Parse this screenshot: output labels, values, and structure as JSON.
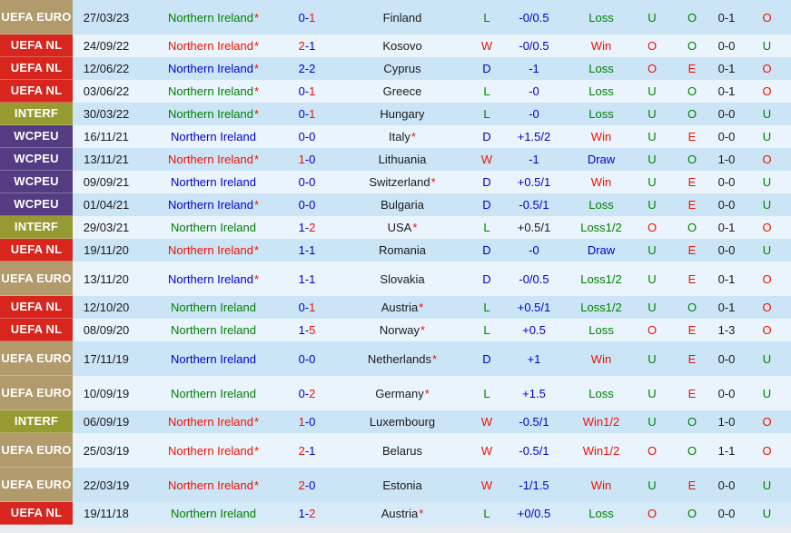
{
  "colors": {
    "green": "#008000",
    "red": "#ee1100",
    "blue": "#0000cc",
    "black": "#1a1a1a",
    "dark_stripe": "#cbe5f7",
    "light_stripe": "#e9f4fc",
    "mid_stripe": "#d6eaf8",
    "badge_text": "#ffffff",
    "bottom_strip": "#e4ebf1"
  },
  "competitions": {
    "UEFA EURO": "#b19b6d",
    "UEFA NL": "#d8251d",
    "INTERF": "#969b31",
    "WCPEU": "#533c82"
  },
  "rows": [
    {
      "competition": "UEFA EURO",
      "date": "27/03/23",
      "home": "Northern Ireland",
      "home_color": "green",
      "home_star": true,
      "ft_home": "0",
      "ft_home_color": "blue",
      "ft_away": "1",
      "ft_away_color": "red",
      "away": "Finland",
      "away_star": false,
      "wdl": "L",
      "wdl_color": "green",
      "handicap": "-0/0.5",
      "handicap_color": "blue",
      "result": "Loss",
      "result_color": "green",
      "ou1": "U",
      "ou1_color": "green",
      "oe": "O",
      "oe_color": "green",
      "ht": "0-1",
      "ou2": "O",
      "ou2_color": "red",
      "tall": true,
      "shade": "dark"
    },
    {
      "competition": "UEFA NL",
      "date": "24/09/22",
      "home": "Northern Ireland",
      "home_color": "red",
      "home_star": true,
      "ft_home": "2",
      "ft_home_color": "red",
      "ft_away": "1",
      "ft_away_color": "blue",
      "away": "Kosovo",
      "away_star": false,
      "wdl": "W",
      "wdl_color": "red",
      "handicap": "-0/0.5",
      "handicap_color": "blue",
      "result": "Win",
      "result_color": "red",
      "ou1": "O",
      "ou1_color": "red",
      "oe": "O",
      "oe_color": "green",
      "ht": "0-0",
      "ou2": "U",
      "ou2_color": "green",
      "tall": false,
      "shade": "light"
    },
    {
      "competition": "UEFA NL",
      "date": "12/06/22",
      "home": "Northern Ireland",
      "home_color": "blue",
      "home_star": true,
      "ft_home": "2",
      "ft_home_color": "blue",
      "ft_away": "2",
      "ft_away_color": "blue",
      "away": "Cyprus",
      "away_star": false,
      "wdl": "D",
      "wdl_color": "blue",
      "handicap": "-1",
      "handicap_color": "blue",
      "result": "Loss",
      "result_color": "green",
      "ou1": "O",
      "ou1_color": "red",
      "oe": "E",
      "oe_color": "red",
      "ht": "0-1",
      "ou2": "O",
      "ou2_color": "red",
      "tall": false,
      "shade": "dark"
    },
    {
      "competition": "UEFA NL",
      "date": "03/06/22",
      "home": "Northern Ireland",
      "home_color": "green",
      "home_star": true,
      "ft_home": "0",
      "ft_home_color": "blue",
      "ft_away": "1",
      "ft_away_color": "red",
      "away": "Greece",
      "away_star": false,
      "wdl": "L",
      "wdl_color": "green",
      "handicap": "-0",
      "handicap_color": "blue",
      "result": "Loss",
      "result_color": "green",
      "ou1": "U",
      "ou1_color": "green",
      "oe": "O",
      "oe_color": "green",
      "ht": "0-1",
      "ou2": "O",
      "ou2_color": "red",
      "tall": false,
      "shade": "light"
    },
    {
      "competition": "INTERF",
      "date": "30/03/22",
      "home": "Northern Ireland",
      "home_color": "green",
      "home_star": true,
      "ft_home": "0",
      "ft_home_color": "blue",
      "ft_away": "1",
      "ft_away_color": "red",
      "away": "Hungary",
      "away_star": false,
      "wdl": "L",
      "wdl_color": "green",
      "handicap": "-0",
      "handicap_color": "blue",
      "result": "Loss",
      "result_color": "green",
      "ou1": "U",
      "ou1_color": "green",
      "oe": "O",
      "oe_color": "green",
      "ht": "0-0",
      "ou2": "U",
      "ou2_color": "green",
      "tall": false,
      "shade": "dark"
    },
    {
      "competition": "WCPEU",
      "date": "16/11/21",
      "home": "Northern Ireland",
      "home_color": "blue",
      "home_star": false,
      "ft_home": "0",
      "ft_home_color": "blue",
      "ft_away": "0",
      "ft_away_color": "blue",
      "away": "Italy",
      "away_star": true,
      "wdl": "D",
      "wdl_color": "blue",
      "handicap": "+1.5/2",
      "handicap_color": "blue",
      "result": "Win",
      "result_color": "red",
      "ou1": "U",
      "ou1_color": "green",
      "oe": "E",
      "oe_color": "red",
      "ht": "0-0",
      "ou2": "U",
      "ou2_color": "green",
      "tall": false,
      "shade": "light"
    },
    {
      "competition": "WCPEU",
      "date": "13/11/21",
      "home": "Northern Ireland",
      "home_color": "red",
      "home_star": true,
      "ft_home": "1",
      "ft_home_color": "red",
      "ft_away": "0",
      "ft_away_color": "blue",
      "away": "Lithuania",
      "away_star": false,
      "wdl": "W",
      "wdl_color": "red",
      "handicap": "-1",
      "handicap_color": "blue",
      "result": "Draw",
      "result_color": "blue",
      "ou1": "U",
      "ou1_color": "green",
      "oe": "O",
      "oe_color": "green",
      "ht": "1-0",
      "ou2": "O",
      "ou2_color": "red",
      "tall": false,
      "shade": "dark"
    },
    {
      "competition": "WCPEU",
      "date": "09/09/21",
      "home": "Northern Ireland",
      "home_color": "blue",
      "home_star": false,
      "ft_home": "0",
      "ft_home_color": "blue",
      "ft_away": "0",
      "ft_away_color": "blue",
      "away": "Switzerland",
      "away_star": true,
      "wdl": "D",
      "wdl_color": "blue",
      "handicap": "+0.5/1",
      "handicap_color": "blue",
      "result": "Win",
      "result_color": "red",
      "ou1": "U",
      "ou1_color": "green",
      "oe": "E",
      "oe_color": "red",
      "ht": "0-0",
      "ou2": "U",
      "ou2_color": "green",
      "tall": false,
      "shade": "light"
    },
    {
      "competition": "WCPEU",
      "date": "01/04/21",
      "home": "Northern Ireland",
      "home_color": "blue",
      "home_star": true,
      "ft_home": "0",
      "ft_home_color": "blue",
      "ft_away": "0",
      "ft_away_color": "blue",
      "away": "Bulgaria",
      "away_star": false,
      "wdl": "D",
      "wdl_color": "blue",
      "handicap": "-0.5/1",
      "handicap_color": "blue",
      "result": "Loss",
      "result_color": "green",
      "ou1": "U",
      "ou1_color": "green",
      "oe": "E",
      "oe_color": "red",
      "ht": "0-0",
      "ou2": "U",
      "ou2_color": "green",
      "tall": false,
      "shade": "dark"
    },
    {
      "competition": "INTERF",
      "date": "29/03/21",
      "home": "Northern Ireland",
      "home_color": "green",
      "home_star": false,
      "ft_home": "1",
      "ft_home_color": "blue",
      "ft_away": "2",
      "ft_away_color": "red",
      "away": "USA",
      "away_star": true,
      "wdl": "L",
      "wdl_color": "green",
      "handicap": "+0.5/1",
      "handicap_color": "black",
      "result": "Loss1/2",
      "result_color": "green",
      "ou1": "O",
      "ou1_color": "red",
      "oe": "O",
      "oe_color": "green",
      "ht": "0-1",
      "ou2": "O",
      "ou2_color": "red",
      "tall": false,
      "shade": "light"
    },
    {
      "competition": "UEFA NL",
      "date": "19/11/20",
      "home": "Northern Ireland",
      "home_color": "red",
      "home_star": true,
      "ft_home": "1",
      "ft_home_color": "blue",
      "ft_away": "1",
      "ft_away_color": "blue",
      "away": "Romania",
      "away_star": false,
      "wdl": "D",
      "wdl_color": "blue",
      "handicap": "-0",
      "handicap_color": "blue",
      "result": "Draw",
      "result_color": "blue",
      "ou1": "U",
      "ou1_color": "green",
      "oe": "E",
      "oe_color": "red",
      "ht": "0-0",
      "ou2": "U",
      "ou2_color": "green",
      "tall": false,
      "shade": "dark"
    },
    {
      "competition": "UEFA EURO",
      "date": "13/11/20",
      "home": "Northern Ireland",
      "home_color": "blue",
      "home_star": true,
      "ft_home": "1",
      "ft_home_color": "blue",
      "ft_away": "1",
      "ft_away_color": "blue",
      "away": "Slovakia",
      "away_star": false,
      "wdl": "D",
      "wdl_color": "blue",
      "handicap": "-0/0.5",
      "handicap_color": "blue",
      "result": "Loss1/2",
      "result_color": "green",
      "ou1": "U",
      "ou1_color": "green",
      "oe": "E",
      "oe_color": "red",
      "ht": "0-1",
      "ou2": "O",
      "ou2_color": "red",
      "tall": true,
      "shade": "light"
    },
    {
      "competition": "UEFA NL",
      "date": "12/10/20",
      "home": "Northern Ireland",
      "home_color": "green",
      "home_star": false,
      "ft_home": "0",
      "ft_home_color": "blue",
      "ft_away": "1",
      "ft_away_color": "red",
      "away": "Austria",
      "away_star": true,
      "wdl": "L",
      "wdl_color": "green",
      "handicap": "+0.5/1",
      "handicap_color": "blue",
      "result": "Loss1/2",
      "result_color": "green",
      "ou1": "U",
      "ou1_color": "green",
      "oe": "O",
      "oe_color": "green",
      "ht": "0-1",
      "ou2": "O",
      "ou2_color": "red",
      "tall": false,
      "shade": "dark"
    },
    {
      "competition": "UEFA NL",
      "date": "08/09/20",
      "home": "Northern Ireland",
      "home_color": "green",
      "home_star": false,
      "ft_home": "1",
      "ft_home_color": "blue",
      "ft_away": "5",
      "ft_away_color": "red",
      "away": "Norway",
      "away_star": true,
      "wdl": "L",
      "wdl_color": "green",
      "handicap": "+0.5",
      "handicap_color": "blue",
      "result": "Loss",
      "result_color": "green",
      "ou1": "O",
      "ou1_color": "red",
      "oe": "E",
      "oe_color": "red",
      "ht": "1-3",
      "ou2": "O",
      "ou2_color": "red",
      "tall": false,
      "shade": "light"
    },
    {
      "competition": "UEFA EURO",
      "date": "17/11/19",
      "home": "Northern Ireland",
      "home_color": "blue",
      "home_star": false,
      "ft_home": "0",
      "ft_home_color": "blue",
      "ft_away": "0",
      "ft_away_color": "blue",
      "away": "Netherlands",
      "away_star": true,
      "wdl": "D",
      "wdl_color": "blue",
      "handicap": "+1",
      "handicap_color": "blue",
      "result": "Win",
      "result_color": "red",
      "ou1": "U",
      "ou1_color": "green",
      "oe": "E",
      "oe_color": "red",
      "ht": "0-0",
      "ou2": "U",
      "ou2_color": "green",
      "tall": true,
      "shade": "dark"
    },
    {
      "competition": "UEFA EURO",
      "date": "10/09/19",
      "home": "Northern Ireland",
      "home_color": "green",
      "home_star": false,
      "ft_home": "0",
      "ft_home_color": "blue",
      "ft_away": "2",
      "ft_away_color": "red",
      "away": "Germany",
      "away_star": true,
      "wdl": "L",
      "wdl_color": "green",
      "handicap": "+1.5",
      "handicap_color": "blue",
      "result": "Loss",
      "result_color": "green",
      "ou1": "U",
      "ou1_color": "green",
      "oe": "E",
      "oe_color": "red",
      "ht": "0-0",
      "ou2": "U",
      "ou2_color": "green",
      "tall": true,
      "shade": "light"
    },
    {
      "competition": "INTERF",
      "date": "06/09/19",
      "home": "Northern Ireland",
      "home_color": "red",
      "home_star": true,
      "ft_home": "1",
      "ft_home_color": "red",
      "ft_away": "0",
      "ft_away_color": "blue",
      "away": "Luxembourg",
      "away_star": false,
      "wdl": "W",
      "wdl_color": "red",
      "handicap": "-0.5/1",
      "handicap_color": "blue",
      "result": "Win1/2",
      "result_color": "red",
      "ou1": "U",
      "ou1_color": "green",
      "oe": "O",
      "oe_color": "green",
      "ht": "1-0",
      "ou2": "O",
      "ou2_color": "red",
      "tall": false,
      "shade": "dark"
    },
    {
      "competition": "UEFA EURO",
      "date": "25/03/19",
      "home": "Northern Ireland",
      "home_color": "red",
      "home_star": true,
      "ft_home": "2",
      "ft_home_color": "red",
      "ft_away": "1",
      "ft_away_color": "blue",
      "away": "Belarus",
      "away_star": false,
      "wdl": "W",
      "wdl_color": "red",
      "handicap": "-0.5/1",
      "handicap_color": "blue",
      "result": "Win1/2",
      "result_color": "red",
      "ou1": "O",
      "ou1_color": "red",
      "oe": "O",
      "oe_color": "green",
      "ht": "1-1",
      "ou2": "O",
      "ou2_color": "red",
      "tall": true,
      "shade": "light"
    },
    {
      "competition": "UEFA EURO",
      "date": "22/03/19",
      "home": "Northern Ireland",
      "home_color": "red",
      "home_star": true,
      "ft_home": "2",
      "ft_home_color": "red",
      "ft_away": "0",
      "ft_away_color": "blue",
      "away": "Estonia",
      "away_star": false,
      "wdl": "W",
      "wdl_color": "red",
      "handicap": "-1/1.5",
      "handicap_color": "blue",
      "result": "Win",
      "result_color": "red",
      "ou1": "U",
      "ou1_color": "green",
      "oe": "E",
      "oe_color": "red",
      "ht": "0-0",
      "ou2": "U",
      "ou2_color": "green",
      "tall": true,
      "shade": "dark"
    },
    {
      "competition": "UEFA NL",
      "date": "19/11/18",
      "home": "Northern Ireland",
      "home_color": "green",
      "home_star": false,
      "ft_home": "1",
      "ft_home_color": "blue",
      "ft_away": "2",
      "ft_away_color": "red",
      "away": "Austria",
      "away_star": true,
      "wdl": "L",
      "wdl_color": "green",
      "handicap": "+0/0.5",
      "handicap_color": "blue",
      "result": "Loss",
      "result_color": "green",
      "ou1": "O",
      "ou1_color": "red",
      "oe": "O",
      "oe_color": "green",
      "ht": "0-0",
      "ou2": "U",
      "ou2_color": "green",
      "tall": false,
      "shade": "mid"
    }
  ]
}
